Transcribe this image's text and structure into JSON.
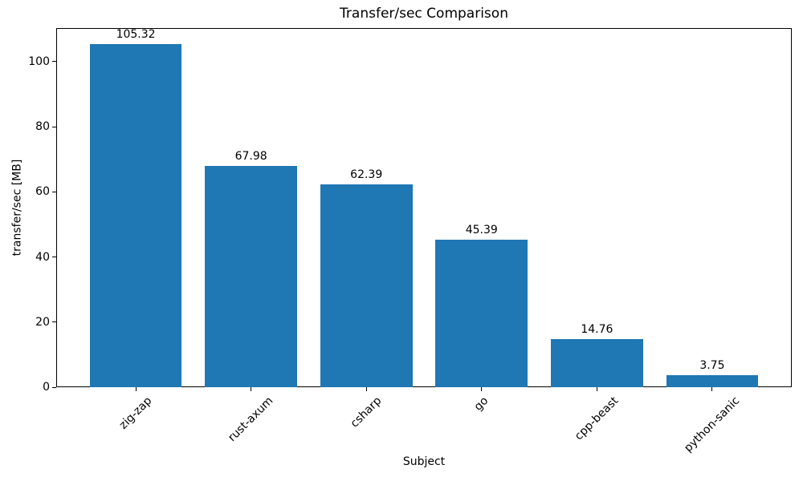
{
  "chart_data": {
    "type": "bar",
    "title": "Transfer/sec Comparison",
    "xlabel": "Subject",
    "ylabel": "transfer/sec [MB]",
    "categories": [
      "zig-zap",
      "rust-axum",
      "csharp",
      "go",
      "cpp-beast",
      "python-sanic"
    ],
    "values": [
      105.32,
      67.98,
      62.39,
      45.39,
      14.76,
      3.75
    ],
    "value_labels": [
      "105.32",
      "67.98",
      "62.39",
      "45.39",
      "14.76",
      "3.75"
    ],
    "yticks": [
      0,
      20,
      40,
      60,
      80,
      100
    ],
    "ylim": [
      0,
      110.34
    ],
    "xtick_rotation_deg": 45,
    "bar_color": "#1f77b4",
    "axis_color": "#000000",
    "background_color": "#ffffff",
    "grid": false,
    "legend": null
  }
}
